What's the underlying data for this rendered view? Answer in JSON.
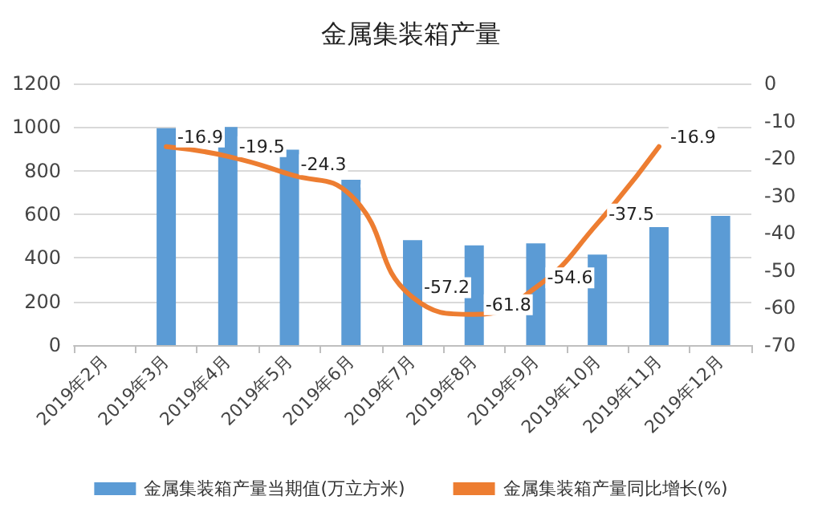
{
  "chart_data": {
    "type": "bar",
    "title": "金属集装箱产量",
    "categories": [
      "2019年2月",
      "2019年3月",
      "2019年4月",
      "2019年5月",
      "2019年6月",
      "2019年7月",
      "2019年8月",
      "2019年9月",
      "2019年10月",
      "2019年11月",
      "2019年12月"
    ],
    "series": [
      {
        "name": "金属集装箱产量当期值(万立方米)",
        "color": "#5b9bd5",
        "values": [
          null,
          995,
          1000,
          896,
          758,
          481,
          457,
          467,
          415,
          541,
          593
        ]
      },
      {
        "name": "金属集装箱产量同比增长(%)",
        "type": "line",
        "axis": "y2",
        "color": "#ed7d31",
        "values": [
          null,
          -16.9,
          -19.5,
          -24.3,
          -30,
          -57.2,
          -61.8,
          -54.6,
          -37.5,
          -16.9,
          null
        ],
        "value_labels": [
          null,
          "-16.9",
          "-19.5",
          "-24.3",
          null,
          "-57.2",
          "-61.8",
          "-54.6",
          "-37.5",
          "-16.9",
          null
        ]
      }
    ],
    "ylim": [
      0,
      1200
    ],
    "yticks": [
      0,
      200,
      400,
      600,
      800,
      1000,
      1200
    ],
    "y2lim": [
      -70,
      0
    ],
    "y2ticks": [
      -70,
      -60,
      -50,
      -40,
      -30,
      -20,
      -10,
      0
    ],
    "grid": "y",
    "legend": "bottom",
    "marker": "none"
  }
}
